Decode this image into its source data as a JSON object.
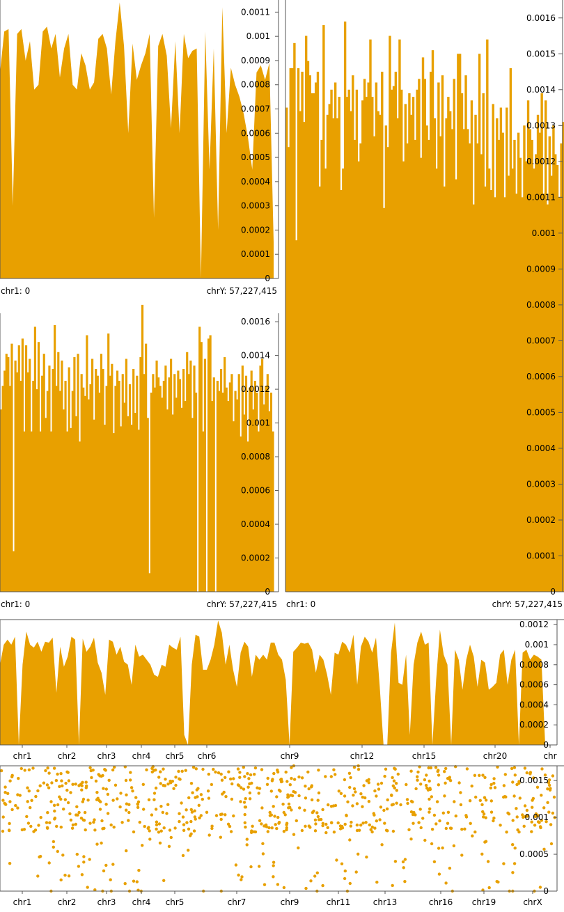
{
  "fill_color": "#E8A000",
  "chart_data": [
    {
      "id": "panel-a",
      "type": "area",
      "ylim": [
        0,
        0.00115
      ],
      "y_ticks": [
        "0",
        "0.0001",
        "0.0002",
        "0.0003",
        "0.0004",
        "0.0005",
        "0.0006",
        "0.0007",
        "0.0008",
        "0.0009",
        "0.001",
        "0.0011"
      ],
      "x_start_label": "chr1: 0",
      "x_end_label": "chrY: 57,227,415",
      "values": [
        0.00085,
        0.00102,
        0.00103,
        0.0003,
        0.00101,
        0.00103,
        0.0009,
        0.00098,
        0.00078,
        0.0008,
        0.00102,
        0.00104,
        0.00095,
        0.00101,
        0.00083,
        0.00095,
        0.00101,
        0.0008,
        0.00078,
        0.00093,
        0.00088,
        0.00078,
        0.00081,
        0.00099,
        0.00101,
        0.00095,
        0.00076,
        0.00098,
        0.00114,
        0.00096,
        0.0006,
        0.00097,
        0.00082,
        0.00088,
        0.00093,
        0.00101,
        0.00025,
        0.00096,
        0.00101,
        0.00092,
        0.00062,
        0.00098,
        0.0006,
        0.00101,
        0.00091,
        0.00094,
        0.00095,
        0.0,
        0.00102,
        0.00045,
        0.00095,
        0.0002,
        0.00112,
        0.0006,
        0.00087,
        0.0008,
        0.00075,
        0.00068,
        0.00058,
        0.00045,
        0.00085,
        0.00088,
        0.00082,
        0.00089,
        0.00015
      ]
    },
    {
      "id": "panel-b",
      "type": "bar",
      "ylim": [
        0,
        0.00165
      ],
      "y_ticks": [
        "0",
        "0.0002",
        "0.0004",
        "0.0006",
        "0.0008",
        "0.001",
        "0.0012",
        "0.0014",
        "0.0016"
      ],
      "x_start_label": "chr1: 0",
      "x_end_label": "chrY: 57,227,415",
      "values": [
        0.00108,
        0.00122,
        0.00131,
        0.00141,
        0.00139,
        0.00122,
        0.00147,
        0.00024,
        0.00137,
        0.0013,
        0.00146,
        0.00125,
        0.0015,
        0.00095,
        0.00146,
        0.0013,
        0.00138,
        0.00095,
        0.00125,
        0.00157,
        0.0012,
        0.00148,
        0.00095,
        0.00128,
        0.00141,
        0.00103,
        0.00119,
        0.00134,
        0.00095,
        0.00132,
        0.00158,
        0.00122,
        0.00142,
        0.00119,
        0.00137,
        0.00108,
        0.00125,
        0.00095,
        0.00133,
        0.00097,
        0.00119,
        0.00139,
        0.00104,
        0.00141,
        0.00089,
        0.00129,
        0.00121,
        0.00116,
        0.00152,
        0.00114,
        0.00123,
        0.00138,
        0.00102,
        0.00132,
        0.00128,
        0.00118,
        0.00141,
        0.00132,
        0.00099,
        0.00122,
        0.00153,
        0.00128,
        0.00135,
        0.00094,
        0.00122,
        0.00131,
        0.00125,
        0.00098,
        0.00129,
        0.00112,
        0.00138,
        0.00104,
        0.00123,
        0.00099,
        0.00132,
        0.00106,
        0.00128,
        0.00096,
        0.00139,
        0.0017,
        0.00129,
        0.00147,
        0.00103,
        0.00011,
        0.00118,
        0.00129,
        0.00121,
        0.00137,
        0.00127,
        0.00122,
        0.00115,
        0.00125,
        0.00134,
        0.00108,
        0.00127,
        0.00138,
        0.00105,
        0.00129,
        0.00115,
        0.00131,
        0.00126,
        0.00109,
        0.00132,
        0.00113,
        0.00142,
        0.00129,
        0.00137,
        0.00103,
        0.00134,
        0.00118,
        0.0,
        0.00157,
        0.00148,
        0.00095,
        0.00138,
        0.0,
        0.0015,
        0.00152,
        0.00113,
        0.00127,
        0.0,
        0.00125,
        0.00119,
        0.00132,
        0.00118,
        0.00139,
        0.00121,
        0.00113,
        0.00124,
        0.00129,
        0.00101,
        0.00119,
        0.00114,
        0.00129,
        0.00092,
        0.00134,
        0.00105,
        0.00128,
        0.00089,
        0.00121,
        0.00131,
        0.00108,
        0.00125,
        0.00118,
        0.00095,
        0.00134,
        0.00138,
        0.00111,
        0.00122,
        0.00129,
        0.00107,
        0.00118,
        0.00095
      ]
    },
    {
      "id": "panel-c",
      "type": "bar",
      "ylim": [
        0,
        0.00165
      ],
      "y_ticks": [
        "0",
        "0.0001",
        "0.0002",
        "0.0003",
        "0.0004",
        "0.0005",
        "0.0006",
        "0.0007",
        "0.0008",
        "0.0009",
        "0.001",
        "0.0011",
        "0.0012",
        "0.0013",
        "0.0014",
        "0.0015",
        "0.0016"
      ],
      "x_start_label": "chr1: 0",
      "x_end_label": "chrY: 57,227,415",
      "values": [
        0.00135,
        0.00124,
        0.00146,
        0.00146,
        0.00153,
        0.00098,
        0.00146,
        0.00134,
        0.00145,
        0.00131,
        0.00155,
        0.00148,
        0.00144,
        0.00139,
        0.00139,
        0.00142,
        0.00145,
        0.00113,
        0.00126,
        0.00158,
        0.00118,
        0.00133,
        0.00136,
        0.0014,
        0.00132,
        0.00142,
        0.00132,
        0.00138,
        0.00112,
        0.00118,
        0.00159,
        0.00138,
        0.0014,
        0.00134,
        0.00144,
        0.00126,
        0.0014,
        0.0012,
        0.00125,
        0.00137,
        0.00143,
        0.00138,
        0.00142,
        0.00154,
        0.00138,
        0.00127,
        0.00142,
        0.00134,
        0.00133,
        0.00145,
        0.00107,
        0.0013,
        0.00124,
        0.00155,
        0.0014,
        0.00141,
        0.00145,
        0.00132,
        0.00154,
        0.0014,
        0.0012,
        0.00136,
        0.00125,
        0.00139,
        0.00133,
        0.00138,
        0.00126,
        0.0014,
        0.00143,
        0.00121,
        0.00149,
        0.00143,
        0.0013,
        0.00126,
        0.00145,
        0.00151,
        0.00132,
        0.00118,
        0.00142,
        0.00127,
        0.00144,
        0.00113,
        0.00132,
        0.00138,
        0.00134,
        0.00129,
        0.00143,
        0.00115,
        0.0015,
        0.0015,
        0.00139,
        0.00129,
        0.00144,
        0.00129,
        0.00125,
        0.00137,
        0.00108,
        0.00133,
        0.00125,
        0.0015,
        0.00122,
        0.00139,
        0.00113,
        0.00154,
        0.00118,
        0.00112,
        0.00136,
        0.0011,
        0.00132,
        0.00126,
        0.00135,
        0.00128,
        0.0011,
        0.00135,
        0.00116,
        0.00146,
        0.00118,
        0.00126,
        0.00111,
        0.00128,
        0.00121,
        0.0011,
        0.0013,
        0.0012,
        0.00137,
        0.00129,
        0.00126,
        0.00118,
        0.00122,
        0.00133,
        0.00128,
        0.00139,
        0.00111,
        0.00137,
        0.00108,
        0.00127,
        0.00116,
        0.0013,
        0.00122,
        0.00119,
        0.0011,
        0.00125,
        0.00131
      ]
    },
    {
      "id": "panel-d",
      "type": "area",
      "ylim": [
        0,
        0.00125
      ],
      "y_ticks": [
        "0",
        "0.0002",
        "0.0004",
        "0.0006",
        "0.0008",
        "0.001",
        "0.0012"
      ],
      "x_tick_labels": [
        "chr1",
        "chr2",
        "chr3",
        "chr4",
        "chr5",
        "chr6",
        "chr9",
        "chr12",
        "chr15",
        "chr20",
        "chr"
      ],
      "values": [
        0.0008,
        0.001,
        0.00105,
        0.001,
        0.00108,
        0.0,
        0.0008,
        0.00113,
        0.001,
        0.00097,
        0.00103,
        0.00093,
        0.00103,
        0.00102,
        0.00107,
        0.00052,
        0.00098,
        0.00078,
        0.00088,
        0.00108,
        0.00105,
        0.0,
        0.00106,
        0.00093,
        0.00098,
        0.00107,
        0.00082,
        0.00072,
        0.0005,
        0.00105,
        0.00103,
        0.0009,
        0.00098,
        0.00083,
        0.0008,
        0.0006,
        0.001,
        0.00088,
        0.0009,
        0.00085,
        0.0008,
        0.0007,
        0.00068,
        0.0008,
        0.00078,
        0.001,
        0.00097,
        0.00095,
        0.00108,
        0.0001,
        0.0,
        0.0008,
        0.0011,
        0.00108,
        0.00075,
        0.00075,
        0.00085,
        0.001,
        0.00124,
        0.00112,
        0.0008,
        0.001,
        0.00075,
        0.00058,
        0.00092,
        0.00103,
        0.00098,
        0.00068,
        0.0009,
        0.00085,
        0.0009,
        0.00085,
        0.00102,
        0.00102,
        0.0009,
        0.00085,
        0.00065,
        0.0,
        0.00093,
        0.00097,
        0.00102,
        0.00101,
        0.00102,
        0.00095,
        0.00072,
        0.0009,
        0.00085,
        0.0007,
        0.0005,
        0.00092,
        0.0009,
        0.00103,
        0.001,
        0.00092,
        0.0011,
        0.0006,
        0.00098,
        0.00108,
        0.00103,
        0.00092,
        0.00107,
        0.00058,
        0.0,
        0.0,
        0.00092,
        0.00122,
        0.00062,
        0.0006,
        0.0009,
        0.0001,
        0.0008,
        0.00102,
        0.00113,
        0.001,
        0.00102,
        0.0,
        0.00065,
        0.00115,
        0.0009,
        0.0008,
        0.0,
        0.00095,
        0.00085,
        0.00055,
        0.00085,
        0.001,
        0.00088,
        0.00058,
        0.00085,
        0.00082,
        0.00055,
        0.00058,
        0.00062,
        0.0009,
        0.00095,
        0.0006,
        0.00085,
        0.00095,
        0.0,
        0.00092,
        0.00095,
        0.00085,
        0.0009,
        0.00088,
        0.00085,
        0.0
      ]
    },
    {
      "id": "panel-e",
      "type": "scatter",
      "ylim": [
        0,
        0.0017
      ],
      "y_ticks": [
        "0",
        "0.0005",
        "0.001",
        "0.0015"
      ],
      "x_tick_labels": [
        "chr1",
        "chr2",
        "chr3",
        "chr4",
        "chr5",
        "chr7",
        "chr9",
        "chr11",
        "chr13",
        "chr16",
        "chr19",
        "chrX"
      ],
      "points_per_chrom": 22
    }
  ]
}
